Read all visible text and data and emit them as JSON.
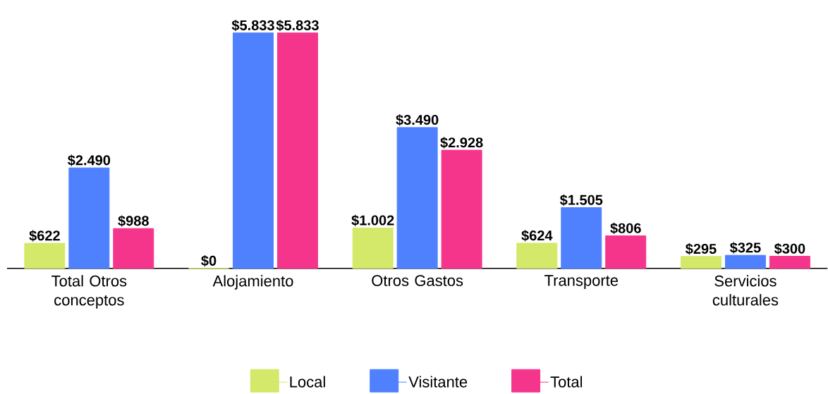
{
  "chart_data": {
    "type": "bar",
    "categories": [
      "Total Otros conceptos",
      "Alojamiento",
      "Otros Gastos",
      "Transporte",
      "Servicios culturales"
    ],
    "series": [
      {
        "name": "Local",
        "color": "#d4e86a",
        "values": [
          622,
          0,
          1002,
          624,
          295
        ],
        "value_labels": [
          "$622",
          "$0",
          "$1.002",
          "$624",
          "$295"
        ]
      },
      {
        "name": "Visitante",
        "color": "#4f81ff",
        "values": [
          2490,
          5833,
          3490,
          1505,
          325
        ],
        "value_labels": [
          "$2.490",
          "$5.833",
          "$3.490",
          "$1.505",
          "$325"
        ]
      },
      {
        "name": "Total",
        "color": "#f5358c",
        "values": [
          988,
          5833,
          2928,
          806,
          300
        ],
        "value_labels": [
          "$988",
          "$5.833",
          "$2.928",
          "$806",
          "$300"
        ]
      }
    ],
    "legend": "bottom"
  }
}
